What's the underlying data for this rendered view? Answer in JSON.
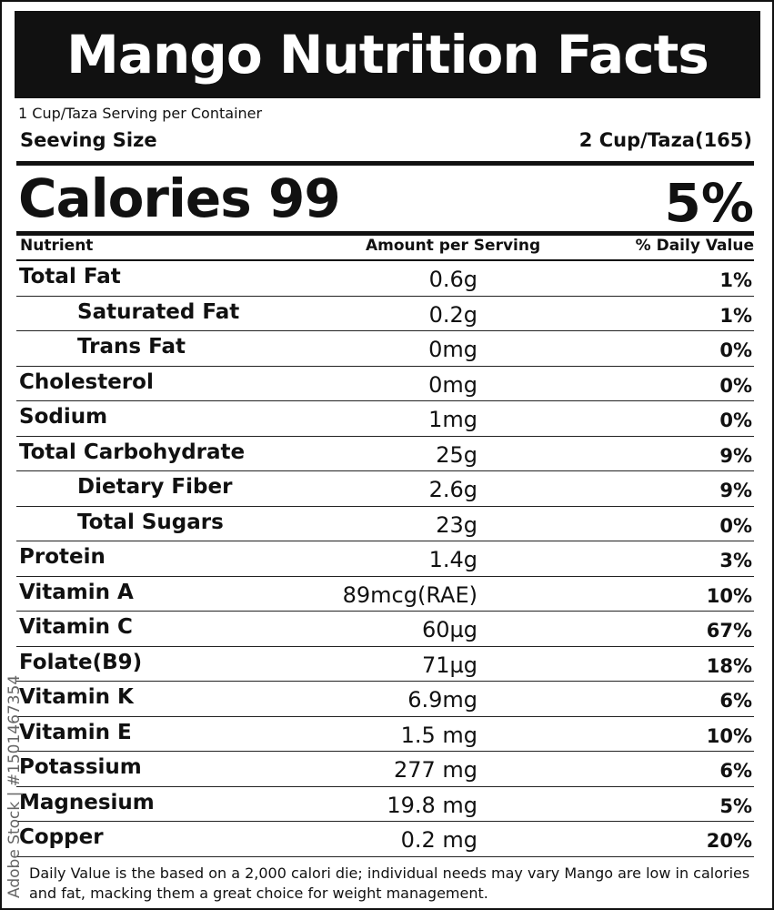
{
  "title": "Mango Nutrition Facts",
  "servings_line": "1 Cup/Taza Serving per Container",
  "serving_size": {
    "label": "Seeving Size",
    "value": "2 Cup/Taza(165)"
  },
  "calories": {
    "label": "Calories 99",
    "percent": "5%"
  },
  "columns": {
    "nutrient": "Nutrient",
    "amount": "Amount per Serving",
    "daily": "% Daily Value"
  },
  "nutrients": [
    {
      "name": "Total Fat",
      "amount": "0.6g",
      "daily": "1%",
      "indent": false
    },
    {
      "name": "Saturated Fat",
      "amount": "0.2g",
      "daily": "1%",
      "indent": true
    },
    {
      "name": "Trans Fat",
      "amount": "0mg",
      "daily": "0%",
      "indent": true
    },
    {
      "name": "Cholesterol",
      "amount": "0mg",
      "daily": "0%",
      "indent": false
    },
    {
      "name": "Sodium",
      "amount": "1mg",
      "daily": "0%",
      "indent": false
    },
    {
      "name": "Total Carbohydrate",
      "amount": "25g",
      "daily": "9%",
      "indent": false
    },
    {
      "name": "Dietary Fiber",
      "amount": "2.6g",
      "daily": "9%",
      "indent": true
    },
    {
      "name": "Total Sugars",
      "amount": "23g",
      "daily": "0%",
      "indent": true
    },
    {
      "name": "Protein",
      "amount": "1.4g",
      "daily": "3%",
      "indent": false
    },
    {
      "name": "Vitamin A",
      "amount": "89mcg(RAE)",
      "daily": "10%",
      "indent": false
    },
    {
      "name": "Vitamin C",
      "amount": "60µg",
      "daily": "67%",
      "indent": false
    },
    {
      "name": "Folate(B9)",
      "amount": "71µg",
      "daily": "18%",
      "indent": false
    },
    {
      "name": "Vitamin K",
      "amount": "6.9mg",
      "daily": "6%",
      "indent": false
    },
    {
      "name": "Vitamin E",
      "amount": "1.5 mg",
      "daily": "10%",
      "indent": false
    },
    {
      "name": "Potassium",
      "amount": "277 mg",
      "daily": "6%",
      "indent": false
    },
    {
      "name": "Magnesium",
      "amount": "19.8 mg",
      "daily": "5%",
      "indent": false
    },
    {
      "name": "Copper",
      "amount": "0.2 mg",
      "daily": "20%",
      "indent": false
    }
  ],
  "footnote": "Daily Value is the based on a 2,000 calori die; individual needs may vary Mango are low in calories and fat, macking them a great choice for weight management.",
  "side_credit": "Adobe Stock | #1501467354"
}
